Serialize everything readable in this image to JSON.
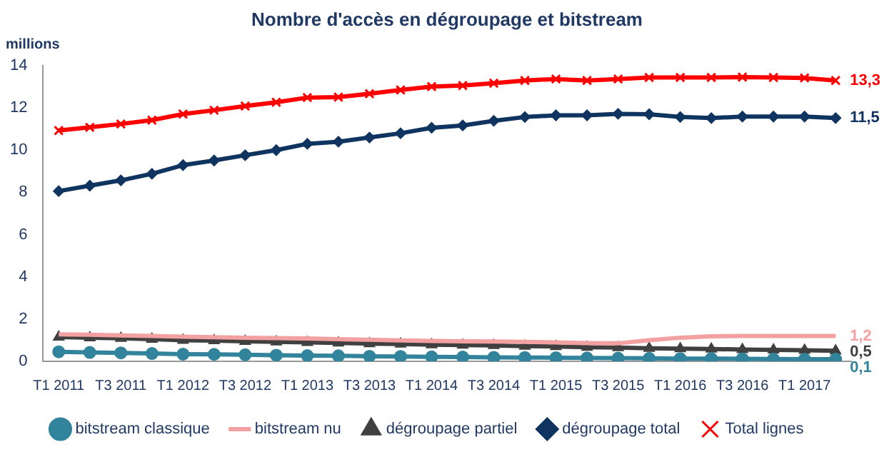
{
  "chart_data": {
    "type": "line",
    "title": "Nombre d'accès en dégroupage et bitstream",
    "ylabel": "millions",
    "categories": [
      "T1 2011",
      null,
      "T3 2011",
      null,
      "T1 2012",
      null,
      "T3 2012",
      null,
      "T1 2013",
      null,
      "T3 2013",
      null,
      "T1 2014",
      null,
      "T3 2014",
      null,
      "T1 2015",
      null,
      "T3 2015",
      null,
      "T1 2016",
      null,
      "T3 2016",
      null,
      "T1 2017",
      null
    ],
    "ylim": [
      0,
      14
    ],
    "yticks": [
      0,
      2,
      4,
      6,
      8,
      10,
      12,
      14
    ],
    "grid": false,
    "legend": "bottom",
    "series": [
      {
        "name": "bitstream classique",
        "color": "#31849b",
        "marker": "circle",
        "values": [
          0.45,
          0.42,
          0.4,
          0.37,
          0.34,
          0.33,
          0.31,
          0.29,
          0.27,
          0.26,
          0.24,
          0.23,
          0.21,
          0.2,
          0.19,
          0.18,
          0.17,
          0.16,
          0.15,
          0.14,
          0.13,
          0.13,
          0.12,
          0.11,
          0.1,
          0.1
        ],
        "value_labels": [
          null,
          null,
          null,
          null,
          null,
          null,
          null,
          null,
          null,
          null,
          null,
          null,
          null,
          null,
          null,
          null,
          null,
          null,
          null,
          null,
          null,
          null,
          null,
          null,
          null,
          "0,1"
        ]
      },
      {
        "name": "bitstream nu",
        "color": "#f2a0a0",
        "marker": "none",
        "values": [
          1.28,
          1.26,
          1.23,
          1.2,
          1.17,
          1.14,
          1.12,
          1.1,
          1.08,
          1.05,
          1.02,
          0.99,
          0.96,
          0.95,
          0.94,
          0.92,
          0.9,
          0.86,
          0.85,
          1.0,
          1.12,
          1.18,
          1.2,
          1.2,
          1.2,
          1.2
        ],
        "value_labels": [
          null,
          null,
          null,
          null,
          null,
          null,
          null,
          null,
          null,
          null,
          null,
          null,
          null,
          null,
          null,
          null,
          null,
          null,
          null,
          null,
          null,
          null,
          null,
          null,
          null,
          "1,2"
        ]
      },
      {
        "name": "dégroupage partiel",
        "color": "#404040",
        "marker": "triangle",
        "values": [
          1.15,
          1.12,
          1.09,
          1.05,
          1.0,
          0.98,
          0.95,
          0.92,
          0.9,
          0.87,
          0.84,
          0.82,
          0.79,
          0.77,
          0.75,
          0.72,
          0.7,
          0.67,
          0.65,
          0.62,
          0.6,
          0.58,
          0.56,
          0.54,
          0.52,
          0.5
        ],
        "value_labels": [
          null,
          null,
          null,
          null,
          null,
          null,
          null,
          null,
          null,
          null,
          null,
          null,
          null,
          null,
          null,
          null,
          null,
          null,
          null,
          null,
          null,
          null,
          null,
          null,
          null,
          "0,5"
        ]
      },
      {
        "name": "dégroupage total",
        "color": "#0f3460",
        "marker": "diamond",
        "values": [
          8.06,
          8.32,
          8.57,
          8.88,
          9.29,
          9.51,
          9.76,
          10.0,
          10.3,
          10.4,
          10.6,
          10.8,
          11.06,
          11.17,
          11.39,
          11.57,
          11.65,
          11.65,
          11.72,
          11.7,
          11.57,
          11.52,
          11.59,
          11.59,
          11.59,
          11.52
        ],
        "value_labels": [
          null,
          null,
          null,
          null,
          null,
          null,
          null,
          null,
          null,
          null,
          null,
          null,
          null,
          null,
          null,
          null,
          null,
          null,
          null,
          null,
          null,
          null,
          null,
          null,
          null,
          "11,5"
        ]
      },
      {
        "name": "Total lignes",
        "color": "#ff0000",
        "marker": "cross",
        "values": [
          10.93,
          11.08,
          11.24,
          11.42,
          11.71,
          11.89,
          12.09,
          12.27,
          12.49,
          12.51,
          12.67,
          12.85,
          13.01,
          13.06,
          13.17,
          13.3,
          13.37,
          13.3,
          13.37,
          13.44,
          13.44,
          13.44,
          13.46,
          13.44,
          13.42,
          13.3
        ],
        "value_labels": [
          null,
          null,
          null,
          null,
          null,
          null,
          null,
          null,
          null,
          null,
          null,
          null,
          null,
          null,
          null,
          null,
          null,
          null,
          null,
          null,
          null,
          null,
          null,
          null,
          null,
          "13,3"
        ]
      }
    ]
  }
}
